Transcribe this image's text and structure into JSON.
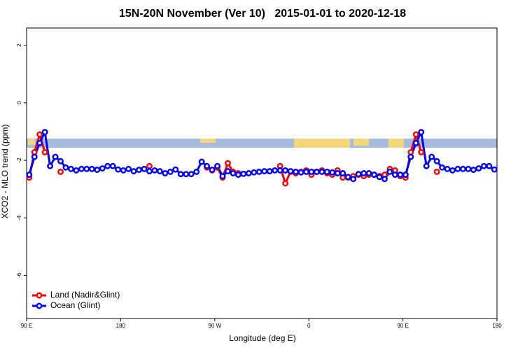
{
  "chart_data": {
    "type": "line",
    "title": "15N-20N November (Ver 10)   2015-01-01 to 2020-12-18",
    "xlabel": "Longitude (deg E)",
    "ylabel": "XCO2 - MLO trend (ppm)",
    "x": [
      92.5,
      97.5,
      102.5,
      107.5,
      112.5,
      117.5,
      122.5,
      127.5,
      132.5,
      137.5,
      142.5,
      147.5,
      152.5,
      157.5,
      162.5,
      167.5,
      172.5,
      177.5,
      182.5,
      187.5,
      192.5,
      197.5,
      202.5,
      207.5,
      212.5,
      217.5,
      222.5,
      227.5,
      232.5,
      237.5,
      242.5,
      247.5,
      252.5,
      257.5,
      262.5,
      267.5,
      272.5,
      277.5,
      282.5,
      287.5,
      292.5,
      297.5,
      302.5,
      307.5,
      312.5,
      317.5,
      322.5,
      327.5,
      332.5,
      337.5,
      342.5,
      347.5,
      352.5,
      357.5,
      362.5,
      367.5,
      372.5,
      377.5,
      382.5,
      387.5,
      392.5,
      397.5,
      402.5,
      407.5,
      412.5,
      417.5,
      422.5,
      427.5,
      432.5,
      437.5,
      442.5,
      447.5,
      452.5,
      457.5,
      462.5,
      467.5,
      472.5,
      477.5,
      482.5,
      487.5,
      492.5,
      497.5,
      502.5,
      507.5,
      512.5,
      517.5,
      522.5,
      527.5,
      532.5,
      537.5
    ],
    "series": [
      {
        "name": "Land (Nadir&Glint)",
        "color": "#ff0000",
        "values": [
          -2.6,
          -1.72,
          -1.1,
          -1.72,
          null,
          null,
          -2.4,
          null,
          null,
          null,
          null,
          null,
          null,
          null,
          null,
          null,
          null,
          null,
          null,
          null,
          null,
          null,
          null,
          -2.2,
          null,
          null,
          null,
          null,
          null,
          null,
          null,
          null,
          null,
          null,
          -2.25,
          -2.35,
          -2.25,
          -2.6,
          -2.1,
          -2.4,
          -2.45,
          null,
          null,
          null,
          null,
          null,
          null,
          null,
          -2.2,
          -2.8,
          -2.4,
          -2.45,
          -2.4,
          -2.35,
          -2.5,
          -2.4,
          -2.35,
          -2.45,
          -2.5,
          -2.35,
          -2.6,
          -2.6,
          -2.55,
          -2.5,
          -2.55,
          -2.5,
          -2.5,
          -2.55,
          -2.5,
          -2.3,
          -2.35,
          -2.55,
          -2.6,
          -1.72,
          -1.1,
          -1.72,
          null,
          null,
          -2.4,
          null,
          null,
          null,
          null,
          null,
          null,
          null,
          null,
          null,
          null,
          null
        ]
      },
      {
        "name": "Ocean (Glint)",
        "color": "#0000ff",
        "values": [
          -2.5,
          -1.88,
          -1.4,
          -1.02,
          -2.2,
          -1.88,
          -2.03,
          -2.25,
          -2.3,
          -2.35,
          -2.3,
          -2.3,
          -2.3,
          -2.33,
          -2.28,
          -2.2,
          -2.2,
          -2.32,
          -2.35,
          -2.3,
          -2.38,
          -2.33,
          -2.3,
          -2.38,
          -2.35,
          -2.38,
          -2.45,
          -2.4,
          -2.32,
          -2.48,
          -2.48,
          -2.48,
          -2.4,
          -2.05,
          -2.2,
          -2.33,
          -2.2,
          -2.55,
          -2.38,
          -2.45,
          -2.5,
          -2.47,
          -2.45,
          -2.42,
          -2.4,
          -2.38,
          -2.38,
          -2.35,
          -2.35,
          -2.35,
          -2.38,
          -2.4,
          -2.42,
          -2.4,
          -2.4,
          -2.4,
          -2.4,
          -2.4,
          -2.42,
          -2.45,
          -2.45,
          -2.58,
          -2.65,
          -2.48,
          -2.45,
          -2.45,
          -2.5,
          -2.58,
          -2.65,
          -2.4,
          -2.5,
          -2.5,
          -2.5,
          -1.88,
          -1.4,
          -1.02,
          -2.2,
          -1.88,
          -2.03,
          -2.25,
          -2.3,
          -2.35,
          -2.3,
          -2.3,
          -2.3,
          -2.33,
          -2.28,
          -2.2,
          -2.2,
          -2.32
        ]
      }
    ],
    "xlim": [
      90,
      540
    ],
    "xticks": [
      {
        "value": 90,
        "label": "90 E"
      },
      180,
      {
        "value": 270,
        "label": "90 W"
      },
      {
        "value": 360,
        "label": "0"
      },
      {
        "value": 450,
        "label": "90 E"
      },
      {
        "value": 540,
        "label": "180"
      }
    ],
    "ylim": [
      -7.5,
      2.6
    ],
    "yticks": [
      -6,
      -4,
      -2,
      0,
      2
    ],
    "legend": "bottom-left"
  }
}
